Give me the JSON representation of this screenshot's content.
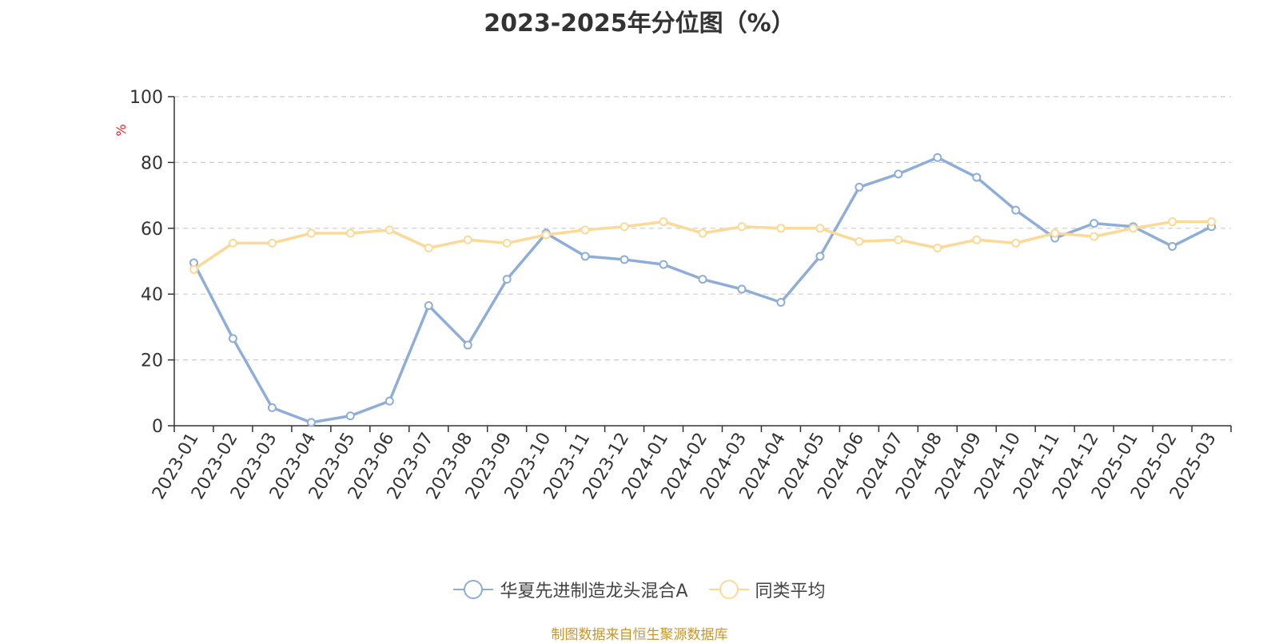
{
  "chart_data": {
    "type": "line",
    "title": "2023-2025年分位图（%）",
    "ylabel": "%",
    "xlabel": "",
    "ylim": [
      0,
      100
    ],
    "yticks": [
      0,
      20,
      40,
      60,
      80,
      100
    ],
    "grid": true,
    "legend_position": "bottom",
    "categories": [
      "2023-01",
      "2023-02",
      "2023-03",
      "2023-04",
      "2023-05",
      "2023-06",
      "2023-07",
      "2023-08",
      "2023-09",
      "2023-10",
      "2023-11",
      "2023-12",
      "2024-01",
      "2024-02",
      "2024-03",
      "2024-04",
      "2024-05",
      "2024-06",
      "2024-07",
      "2024-08",
      "2024-09",
      "2024-10",
      "2024-11",
      "2024-12",
      "2025-01",
      "2025-02",
      "2025-03"
    ],
    "series": [
      {
        "name": "华夏先进制造龙头混合A",
        "color": "#8eadd9",
        "values": [
          49.5,
          26.5,
          5.5,
          1,
          3,
          7.5,
          36.5,
          24.5,
          44.5,
          58.5,
          51.5,
          50.5,
          49,
          44.5,
          41.5,
          37.5,
          51.5,
          72.5,
          76.5,
          81.5,
          75.5,
          65.5,
          57,
          61.5,
          60.5,
          54.5,
          60.5
        ]
      },
      {
        "name": "同类平均",
        "color": "#fbd996",
        "values": [
          47.5,
          55.5,
          55.5,
          58.5,
          58.5,
          59.5,
          54,
          56.5,
          55.5,
          58,
          59.5,
          60.5,
          62,
          58.5,
          60.5,
          60,
          60,
          56,
          56.5,
          54,
          56.5,
          55.5,
          58.5,
          57.5,
          60,
          62,
          62
        ]
      }
    ]
  },
  "source_text": "制图数据来自恒生聚源数据库"
}
